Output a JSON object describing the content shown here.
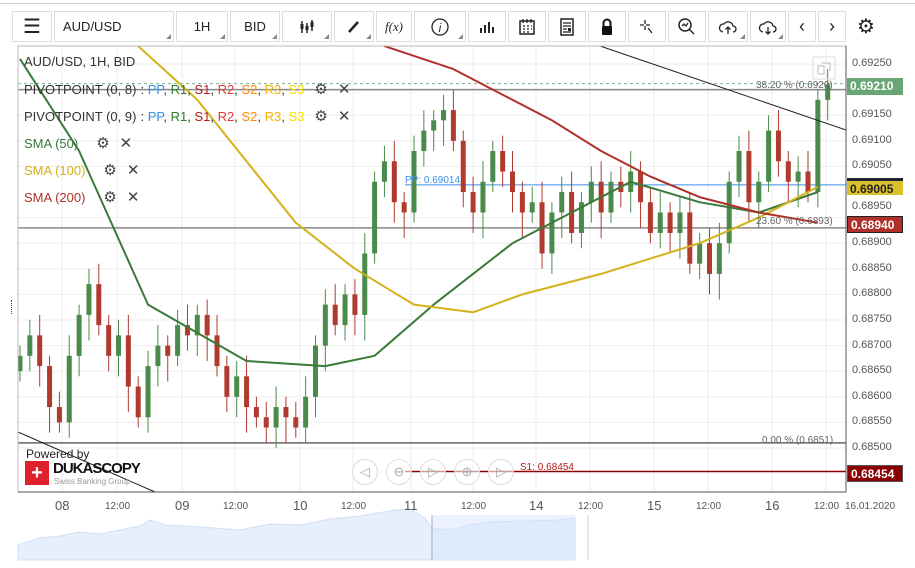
{
  "toolbar": {
    "instrument": "AUD/USD",
    "period": "1H",
    "side": "BID"
  },
  "header": {
    "title": "AUD/USD, 1H, BID"
  },
  "indicators": [
    {
      "name": "PIVOTPOINT (0, 8)",
      "sep": " : ",
      "parts": [
        "PP",
        ", ",
        "R1",
        ", ",
        "S1",
        ", ",
        "R2",
        ", ",
        "S2",
        ", ",
        "R3",
        ", ",
        "S3"
      ]
    },
    {
      "name": "PIVOTPOINT (0, 9)",
      "sep": " : ",
      "parts": [
        "PP",
        ", ",
        "R1",
        ", ",
        "S1",
        ", ",
        "R2",
        ", ",
        "S2",
        ", ",
        "R3",
        ", ",
        "S3"
      ]
    },
    {
      "name": "SMA (50)",
      "color": "#3a7a3a"
    },
    {
      "name": "SMA (100)",
      "color": "#d4b21a"
    },
    {
      "name": "SMA (200)",
      "color": "#b0302a"
    }
  ],
  "colors": {
    "PP": "#3a8ee6",
    "R1": "#2e7d32",
    "S1": "#b71c1c",
    "R2": "#e53935",
    "S2": "#ff8c00",
    "R3": "#f0b400",
    "S3": "#f5e000",
    "up": "#4a8a4a",
    "down": "#b03a2e"
  },
  "annotations": {
    "fib38": "38.20 % (0.6920)",
    "fib23": "23.60 % (0.6893)",
    "fib0": "0.00 % (0.6851)",
    "pp": "PP: 0.69014",
    "s1": "S1: 0.68454"
  },
  "price_labels": {
    "last": "0.69210",
    "sma50": "0.69005",
    "sma200": "0.68940",
    "s1": "0.68454"
  },
  "branding": {
    "powered": "Powered by",
    "logo": "DUKASCOPY",
    "sub": "Swiss Banking Group"
  },
  "chart_data": {
    "type": "candlestick",
    "yaxis": {
      "ticks": [
        "0.69250",
        "0.69150",
        "0.69100",
        "0.69050",
        "0.68950",
        "0.68900",
        "0.68850",
        "0.68800",
        "0.68750",
        "0.68700",
        "0.68650",
        "0.68600",
        "0.68550",
        "0.68500"
      ]
    },
    "xaxis": {
      "ticks": [
        "08",
        "12:00",
        "09",
        "12:00",
        "10",
        "12:00",
        "11",
        "12:00",
        "14",
        "12:00",
        "15",
        "12:00",
        "16",
        "12:00",
        "16.01.2020"
      ]
    },
    "closes": [
      0.6868,
      0.6872,
      0.6866,
      0.6858,
      0.6855,
      0.6868,
      0.6876,
      0.6882,
      0.6874,
      0.6868,
      0.6872,
      0.6862,
      0.6856,
      0.6866,
      0.687,
      0.6868,
      0.6874,
      0.6872,
      0.6876,
      0.6872,
      0.6866,
      0.686,
      0.6864,
      0.6858,
      0.6856,
      0.6854,
      0.6858,
      0.6856,
      0.6854,
      0.686,
      0.687,
      0.6878,
      0.6874,
      0.688,
      0.6876,
      0.6888,
      0.6902,
      0.6906,
      0.6898,
      0.6896,
      0.6908,
      0.6912,
      0.6914,
      0.6916,
      0.691,
      0.69,
      0.6896,
      0.6902,
      0.6908,
      0.6904,
      0.69,
      0.6896,
      0.6898,
      0.6888,
      0.6896,
      0.69,
      0.6892,
      0.6898,
      0.6902,
      0.6896,
      0.6902,
      0.69,
      0.6904,
      0.6898,
      0.6892,
      0.6896,
      0.6892,
      0.6896,
      0.6886,
      0.689,
      0.6884,
      0.689,
      0.6902,
      0.6908,
      0.6898,
      0.6902,
      0.6912,
      0.6906,
      0.6902,
      0.6904,
      0.69,
      0.6918,
      0.6921
    ],
    "sma50": [
      [
        0,
        0.6926
      ],
      [
        6,
        0.6908
      ],
      [
        13,
        0.6878
      ],
      [
        23,
        0.6867
      ],
      [
        31,
        0.6866
      ],
      [
        36,
        0.6868
      ],
      [
        42,
        0.6878
      ],
      [
        50,
        0.689
      ],
      [
        59,
        0.6899
      ],
      [
        62,
        0.6902
      ],
      [
        69,
        0.6898
      ],
      [
        75,
        0.6896
      ],
      [
        81,
        0.69
      ]
    ],
    "sma100": [
      [
        12,
        0.69285
      ],
      [
        18,
        0.6918
      ],
      [
        23,
        0.6906
      ],
      [
        28,
        0.6894
      ],
      [
        34,
        0.6885
      ],
      [
        40,
        0.6878
      ],
      [
        46,
        0.68765
      ],
      [
        51,
        0.688
      ],
      [
        59,
        0.6884
      ],
      [
        64,
        0.6887
      ],
      [
        69,
        0.689
      ],
      [
        75,
        0.6895
      ],
      [
        81,
        0.6901
      ]
    ],
    "sma200": [
      [
        37,
        0.69285
      ],
      [
        44,
        0.6924
      ],
      [
        49,
        0.6919
      ],
      [
        54,
        0.6914
      ],
      [
        59,
        0.6908
      ],
      [
        64,
        0.6903
      ],
      [
        69,
        0.6899
      ],
      [
        75,
        0.6896
      ],
      [
        81,
        0.6894
      ]
    ],
    "levels": {
      "fib38": 0.692,
      "fib23": 0.6893,
      "fib0": 0.6851,
      "pp": 0.69014,
      "s1": 0.68454
    }
  }
}
